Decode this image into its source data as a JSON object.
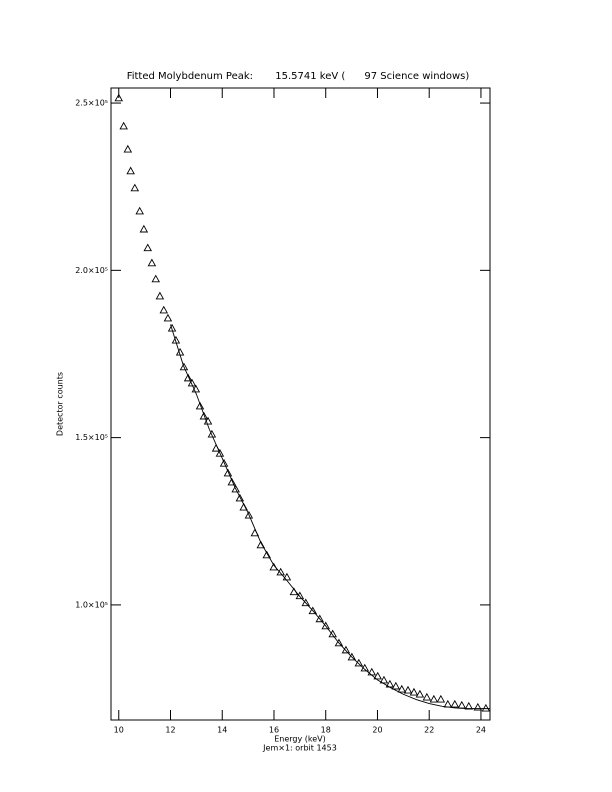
{
  "chart_data": {
    "type": "scatter",
    "title": "Fitted Molybdenum Peak:       15.5741 keV (      97 Science windows)",
    "x_label": "Energy (keV)",
    "subtitle": "Jem×1: orbit 1453",
    "y_label": "Detector counts",
    "marker": "triangle",
    "color": "#000000",
    "x": [
      10.0,
      10.19,
      10.35,
      10.46,
      10.62,
      10.81,
      10.97,
      11.12,
      11.28,
      11.43,
      11.59,
      11.74,
      11.9,
      12.06,
      12.21,
      12.37,
      12.52,
      12.68,
      12.83,
      12.98,
      13.14,
      13.29,
      13.45,
      13.6,
      13.76,
      13.91,
      14.07,
      14.22,
      14.37,
      14.52,
      14.68,
      14.83,
      15.03,
      15.26,
      15.49,
      15.72,
      15.99,
      16.26,
      16.5,
      16.77,
      17.0,
      17.23,
      17.5,
      17.77,
      18.0,
      18.27,
      18.51,
      18.78,
      19.01,
      19.28,
      19.51,
      19.78,
      20.01,
      20.25,
      20.48,
      20.71,
      20.94,
      21.18,
      21.41,
      21.64,
      21.91,
      22.18,
      22.45,
      22.72,
      22.99,
      23.26,
      23.53,
      23.88,
      24.19
    ],
    "values": [
      251500,
      243100,
      236200,
      229700,
      224600,
      217700,
      212300,
      206700,
      202200,
      197400,
      192300,
      188100,
      185700,
      182700,
      179100,
      175500,
      171100,
      167800,
      166300,
      164500,
      159400,
      156400,
      154900,
      151000,
      146800,
      145300,
      142300,
      139400,
      136700,
      134600,
      131900,
      129200,
      126800,
      121500,
      117900,
      114900,
      111300,
      109800,
      108300,
      103900,
      102700,
      100600,
      98200,
      95800,
      93700,
      91300,
      88600,
      86500,
      84400,
      82600,
      81100,
      79900,
      78700,
      77500,
      76300,
      75700,
      74800,
      74500,
      73900,
      73300,
      72400,
      71800,
      71800,
      70300,
      70300,
      70000,
      69700,
      69400,
      69100
    ],
    "fit": {
      "type": "line",
      "x": [
        12.0,
        12.5,
        13.0,
        13.5,
        14.0,
        14.5,
        15.0,
        15.5,
        16.0,
        16.5,
        17.0,
        17.5,
        18.0,
        18.5,
        19.0,
        19.5,
        20.0,
        20.5,
        21.0,
        21.5,
        22.0,
        22.5,
        23.0,
        23.5,
        24.0,
        24.35
      ],
      "values": [
        183800,
        171500,
        163000,
        152500,
        143800,
        135000,
        127500,
        118500,
        111800,
        107300,
        102500,
        98300,
        93700,
        88700,
        84500,
        80800,
        77600,
        75300,
        73300,
        71700,
        70500,
        69700,
        69200,
        69000,
        69000,
        69000
      ]
    },
    "xlim": [
      9.7,
      24.35
    ],
    "ylim": [
      65600,
      254500
    ],
    "xticks": [
      10,
      12,
      14,
      16,
      18,
      20,
      22,
      24
    ],
    "yticks": [
      {
        "value": 100000,
        "label": "1.0×10⁵"
      },
      {
        "value": 150000,
        "label": "1.5×10⁵"
      },
      {
        "value": 200000,
        "label": "2.0×10⁵"
      },
      {
        "value": 250000,
        "label": "2.5×10⁵"
      }
    ]
  }
}
